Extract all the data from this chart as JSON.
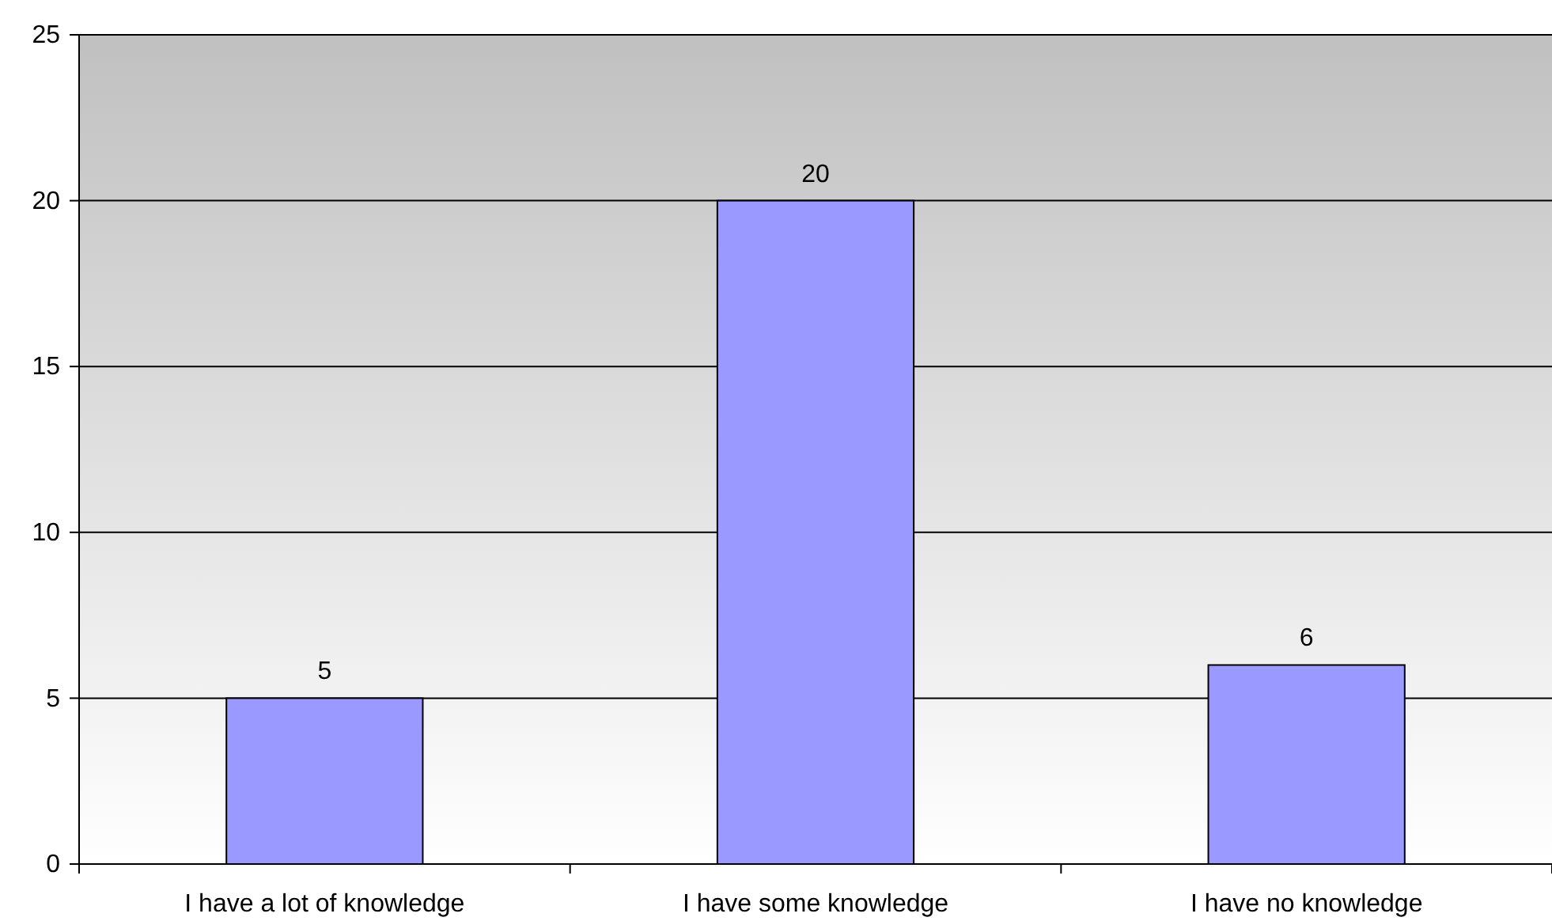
{
  "chart_data": {
    "type": "bar",
    "categories": [
      "I have a lot of knowledge",
      "I have some knowledge",
      "I have no knowledge"
    ],
    "values": [
      5,
      20,
      6
    ],
    "color": "#9999ff",
    "ylim": [
      0,
      25
    ],
    "yticks": [
      0,
      5,
      10,
      15,
      20,
      25
    ],
    "grid": "y",
    "data_labels": true
  }
}
